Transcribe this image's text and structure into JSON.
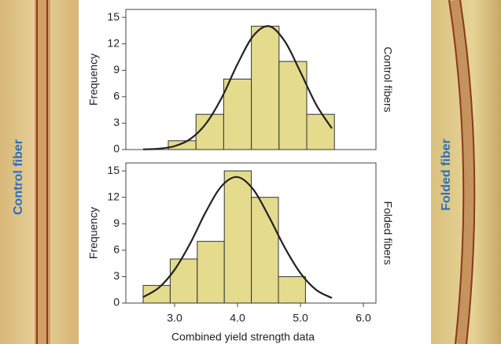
{
  "photos": {
    "left_label": "Control fiber",
    "right_label": "Folded fiber"
  },
  "chart_data": [
    {
      "type": "histogram",
      "side_label": "Control fibers",
      "ylabel": "Frequency",
      "bins": [
        2.9,
        3.34,
        3.78,
        4.22,
        4.66,
        5.1,
        5.54
      ],
      "values": [
        1,
        4,
        8,
        14,
        10,
        4
      ],
      "color": "#e4db8c",
      "curve_color": "#222222",
      "curve_x": [
        2.5,
        2.75,
        3.0,
        3.25,
        3.5,
        3.75,
        4.0,
        4.25,
        4.5,
        4.75,
        5.0,
        5.25,
        5.5
      ],
      "curve_y": [
        0.02,
        0.1,
        0.39,
        1.2,
        2.96,
        5.9,
        9.7,
        12.9,
        14.0,
        12.3,
        8.8,
        5.1,
        2.4
      ],
      "xlim": [
        2.225,
        6.2
      ],
      "ylim": [
        0,
        15.9
      ],
      "yticks": [
        0,
        3,
        6,
        9,
        12,
        15
      ]
    },
    {
      "type": "histogram",
      "side_label": "Folded fibers",
      "ylabel": "Frequency",
      "xlabel": "Combined yield strength data",
      "bins": [
        2.5,
        2.93,
        3.36,
        3.79,
        4.22,
        4.65,
        5.08
      ],
      "values": [
        2,
        5,
        7,
        15,
        12,
        3
      ],
      "color": "#e4db8c",
      "curve_color": "#222222",
      "curve_x": [
        2.5,
        2.75,
        3.0,
        3.25,
        3.5,
        3.75,
        4.0,
        4.25,
        4.5,
        4.75,
        5.0,
        5.25,
        5.5
      ],
      "curve_y": [
        0.68,
        1.75,
        3.78,
        6.8,
        10.4,
        13.3,
        14.3,
        12.9,
        9.8,
        6.3,
        3.4,
        1.5,
        0.58
      ],
      "xlim": [
        2.225,
        6.2
      ],
      "ylim": [
        0,
        15.9
      ],
      "yticks": [
        0,
        3,
        6,
        9,
        12,
        15
      ],
      "xticks": [
        {
          "value": 3,
          "label": "3.0"
        },
        {
          "value": 4,
          "label": "4.0"
        },
        {
          "value": 5,
          "label": "5.0"
        },
        {
          "value": 6,
          "label": "6.0"
        }
      ]
    }
  ]
}
